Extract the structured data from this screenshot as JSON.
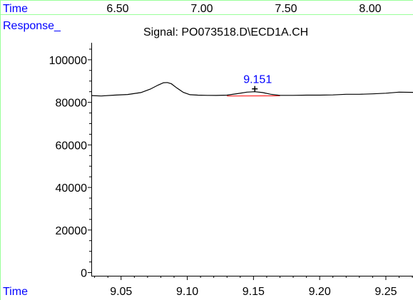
{
  "chart_data": {
    "type": "line",
    "title": "Signal: PO073518.D\\ECD1A.CH",
    "top_axis": {
      "label": "Time",
      "tick_labels": [
        "6.50",
        "7.00",
        "7.50",
        "8.00"
      ],
      "tick_values": [
        6.5,
        7.0,
        7.5,
        8.0
      ]
    },
    "ylabel": "Response_",
    "xlabel": "Time",
    "xlim": [
      9.0275,
      9.2705
    ],
    "ylim": [
      -1500,
      108000
    ],
    "x_ticks": [
      9.05,
      9.1,
      9.15,
      9.2,
      9.25
    ],
    "x_tick_labels": [
      "9.05",
      "9.10",
      "9.15",
      "9.20",
      "9.25"
    ],
    "y_ticks": [
      0,
      20000,
      40000,
      60000,
      80000,
      100000
    ],
    "y_tick_labels": [
      "0",
      "20000",
      "40000",
      "60000",
      "80000",
      "100000"
    ],
    "series": [
      {
        "color": "#000000",
        "x": [
          9.0275,
          9.035,
          9.045,
          9.055,
          9.065,
          9.072,
          9.078,
          9.082,
          9.085,
          9.088,
          9.092,
          9.097,
          9.102,
          9.108,
          9.115,
          9.122,
          9.13,
          9.138,
          9.145,
          9.151,
          9.157,
          9.163,
          9.17,
          9.18,
          9.19,
          9.2,
          9.21,
          9.22,
          9.23,
          9.24,
          9.25,
          9.26,
          9.2705
        ],
        "y": [
          83200,
          83000,
          83400,
          83700,
          84600,
          86200,
          88100,
          89200,
          89300,
          88700,
          86800,
          84700,
          83600,
          83400,
          83300,
          83250,
          83400,
          84100,
          84800,
          85000,
          84600,
          83800,
          83300,
          83300,
          83400,
          83400,
          83500,
          83800,
          83800,
          84000,
          84300,
          84800,
          84700
        ]
      }
    ],
    "baseline": {
      "color": "#ff0000",
      "x": [
        9.13,
        9.17
      ],
      "y": [
        83000,
        83100
      ]
    },
    "peak": {
      "label": "9.151",
      "x": 9.151,
      "y": 85000,
      "label_color": "#0000ff"
    },
    "colors": {
      "frame": "#99ff99",
      "axis": "#000000",
      "trace": "#000000",
      "baseline": "#ff0000",
      "blue_label": "#0000ff"
    }
  }
}
